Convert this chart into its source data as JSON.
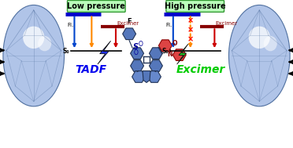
{
  "bg_color": "#ffffff",
  "low_pressure_label": "Low pressure",
  "high_pressure_label": "High pressure",
  "low_pressure_bg": "#bbffbb",
  "high_pressure_bg": "#bbffbb",
  "label_border": "#339933",
  "s0_label": "S₀",
  "fl_label": "Fl.",
  "tadf_label": "TADF",
  "excimer_label": "Excimer",
  "tadf_text": "TADF",
  "excimer_text": "Excimer",
  "blue_bolt_color": "#2233ff",
  "green_bolt_color": "#22cc22",
  "tadf_text_color": "#0000ee",
  "excimer_text_color": "#00cc00",
  "diamond_base": "#b0c4e8",
  "diamond_highlight": "#ddeeff",
  "diamond_mid": "#8fa8d0",
  "diamond_dark": "#6080b0",
  "diamond_edge": "#5070a0",
  "arrow_color": "#111111",
  "fl_arrow_color": "#0044cc",
  "tadf_arrow_color": "#ff8800",
  "excimer_arrow_color": "#cc0000",
  "top_bar_color": "#0000cc",
  "excimer_bar_color": "#880000",
  "cross_color": "#ff0000",
  "mol_blue": "#5577bb",
  "mol_dark": "#223355",
  "mol_red": "#dd4444",
  "mol_red_edge": "#880000",
  "so_text_color": "#000099",
  "f_text_color": "#000000",
  "bond_color": "#111111"
}
